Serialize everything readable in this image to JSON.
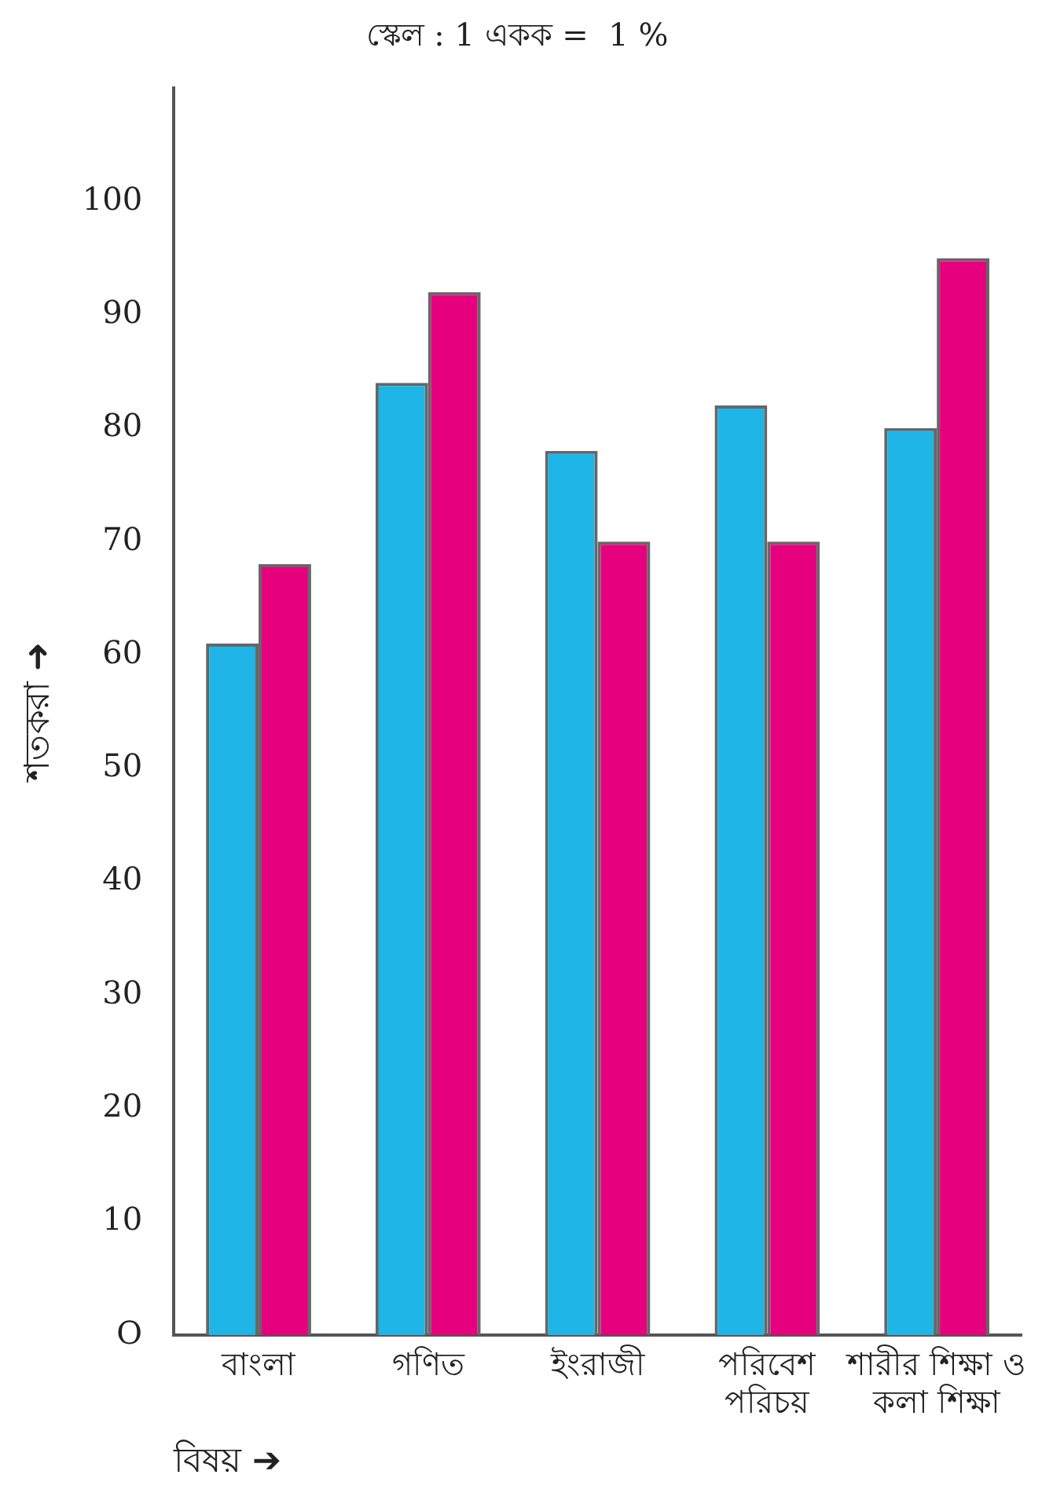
{
  "chart_data": {
    "type": "bar",
    "title": "স্কেল : 1 একক =  1 %",
    "xlabel": "বিষয় ➔",
    "ylabel": "শতকরা ➜",
    "categories": [
      "বাংলা",
      "গণিত",
      "ইংরাজী",
      "পরিবেশ\nপরিচয়",
      "শারীর শিক্ষা ও\nকলা শিক্ষা"
    ],
    "series": [
      {
        "color": "#1fb5e6",
        "values": [
          61,
          84,
          78,
          82,
          80
        ]
      },
      {
        "color": "#e6007e",
        "values": [
          68,
          92,
          70,
          70,
          95
        ]
      }
    ],
    "ylim": [
      0,
      110
    ],
    "yticks": [
      {
        "value": 0,
        "label": "O"
      },
      10,
      20,
      30,
      40,
      50,
      60,
      70,
      80,
      90,
      100
    ],
    "grid": false,
    "legend": false
  }
}
